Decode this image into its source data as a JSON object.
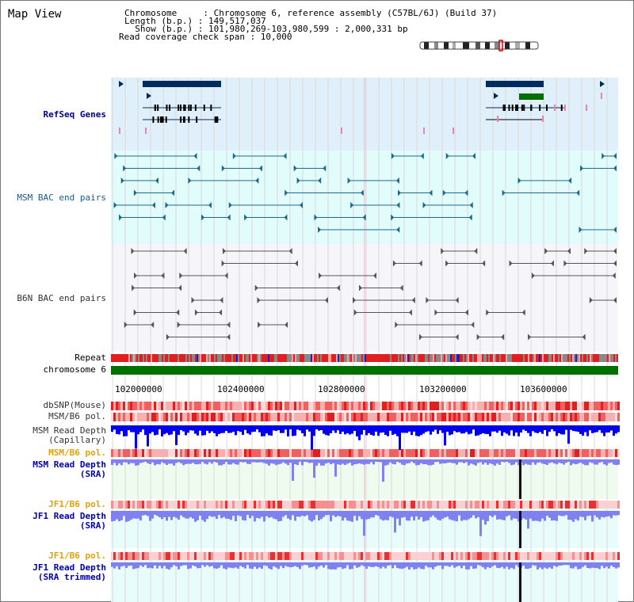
{
  "header": {
    "title": "Map View",
    "chromosome_line": "Chromosome     : Chromosome 6, reference assembly (C57BL/6J) (Build 37)",
    "length_line": "Length (b.p.) : 149,517,037",
    "show_line": "  Show (b.p.) : 101,980,269-103,980,599 : 2,000,331 bp",
    "coverage_line": "Read coverage check span : 10,000"
  },
  "tracks": {
    "refseq": "RefSeq Genes",
    "msm_bac": "MSM BAC end pairs",
    "b6n_bac": "B6N BAC end pairs",
    "repeat": "Repeat",
    "chromosome": "chromosome 6",
    "dbsnp": "dbSNP(Mouse)",
    "msm_b6_pol_1": "MSM/B6 pol.",
    "msm_depth_cap_1": "MSM Read Depth",
    "msm_depth_cap_2": "(Capillary)",
    "msm_b6_pol_2": "MSM/B6 pol.",
    "msm_depth_sra_1": "MSM Read Depth",
    "msm_depth_sra_2": "(SRA)",
    "jf1_pol_1": "JF1/B6 pol.",
    "jf1_depth_sra_1": "JF1 Read Depth",
    "jf1_depth_sra_2": "(SRA)",
    "jf1_pol_2": "JF1/B6 pol.",
    "jf1_depth_trim_1": "JF1 Read Depth",
    "jf1_depth_trim_2": "(SRA trimmed)"
  },
  "axis": {
    "ticks": [
      "102000000",
      "102400000",
      "102800000",
      "103200000",
      "103600000"
    ]
  },
  "colors": {
    "refseq_bg": "#dff0fa",
    "bac_bg": "#e2fbfb",
    "b6n_bg": "#f6f6fa",
    "chromosome": "#007000",
    "gene_dark": "#002b5c",
    "gene_green": "#007000",
    "msm_pair": "#1a6a8a",
    "b6n_pair": "#555555",
    "depth_blue": "#0000ee",
    "depth_light": "#8080f0"
  }
}
